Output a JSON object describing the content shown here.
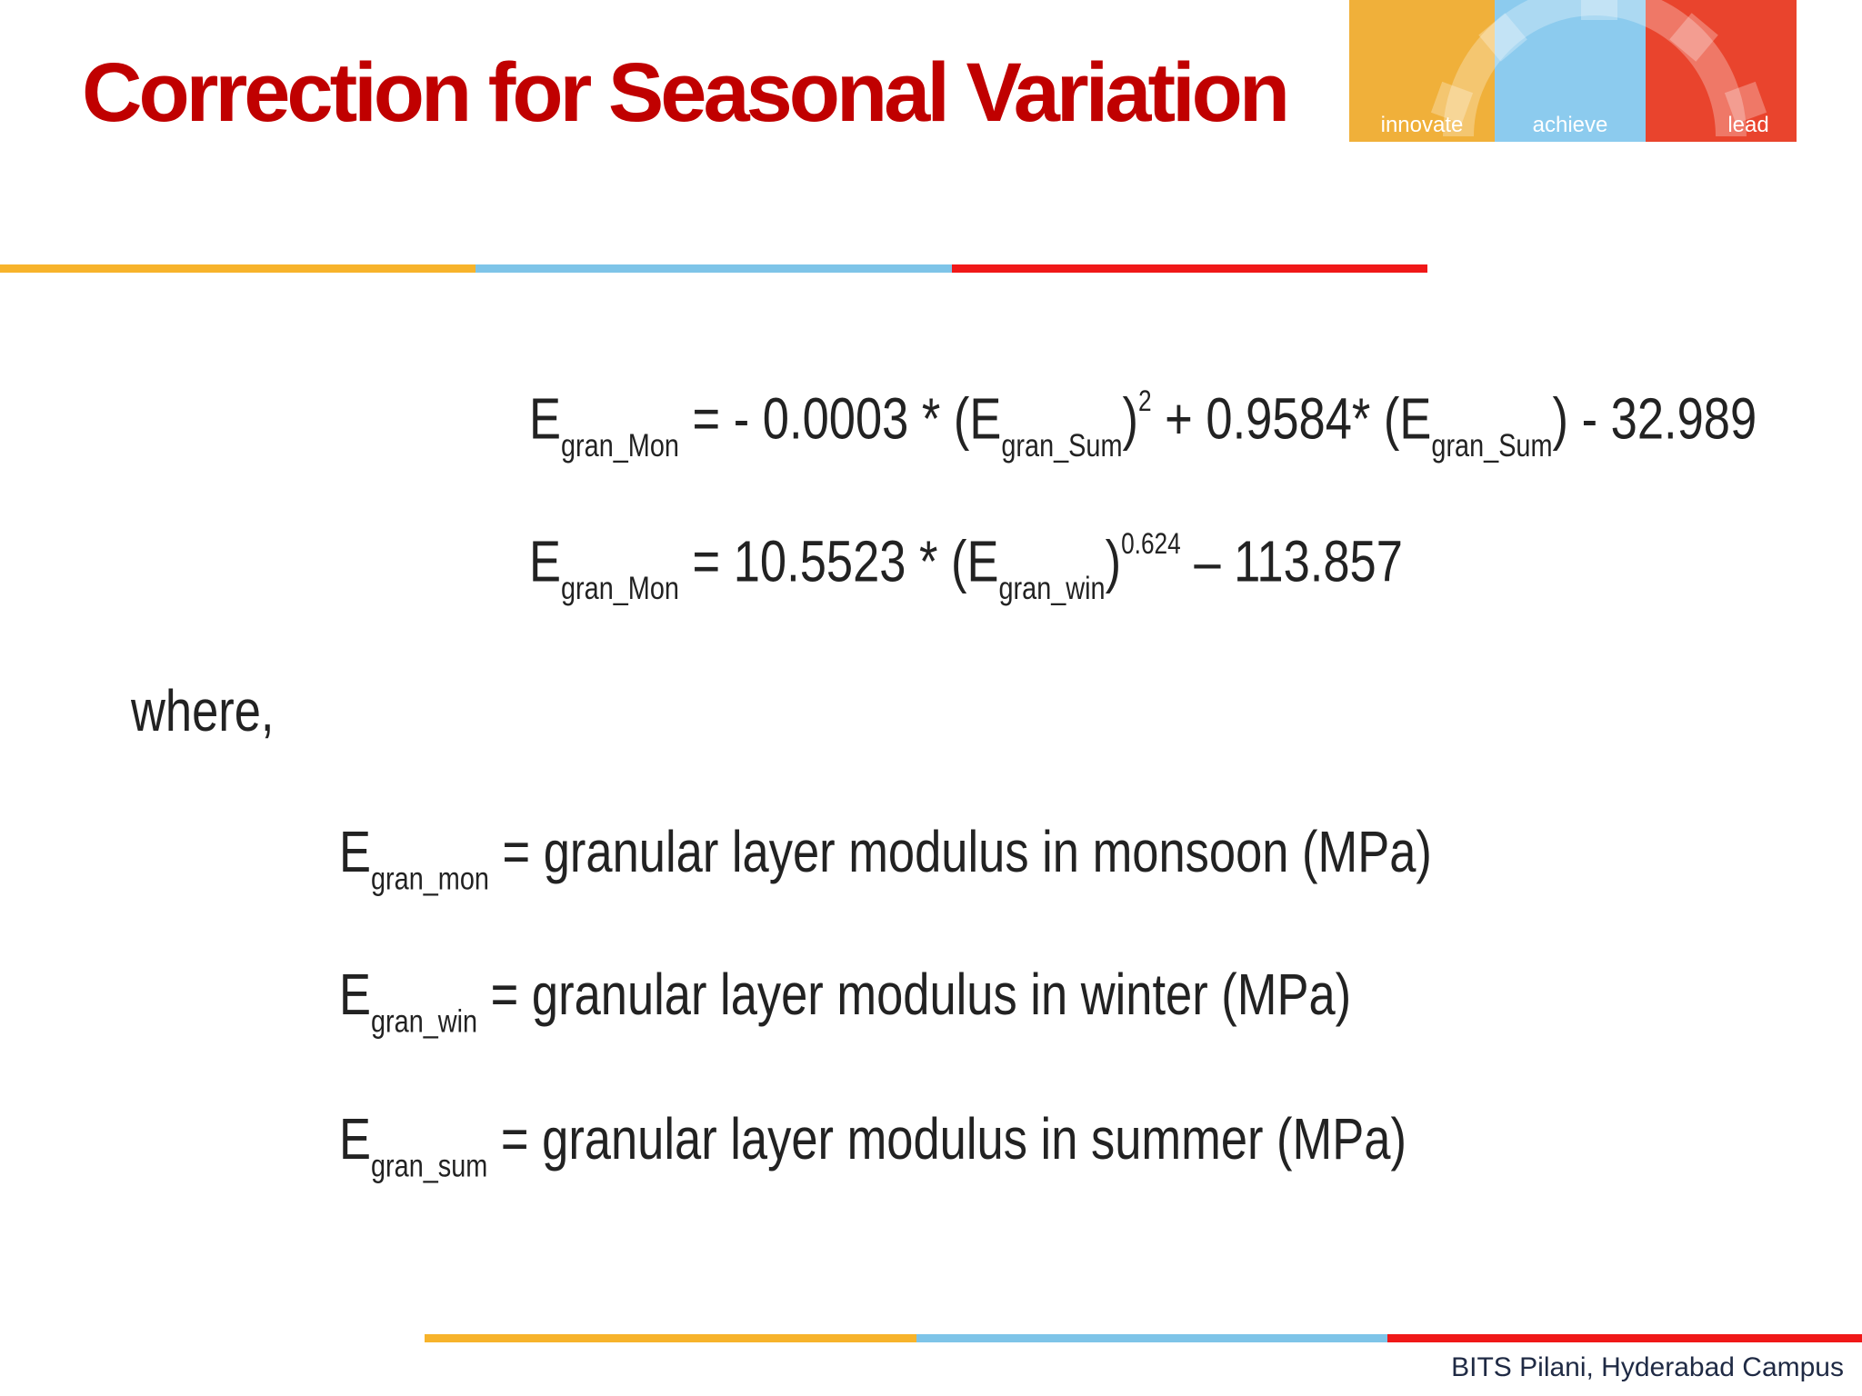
{
  "slide": {
    "title": "Correction for Seasonal Variation",
    "footer": "BITS Pilani, Hyderabad Campus"
  },
  "logo": {
    "words": [
      "innovate",
      "achieve",
      "lead"
    ],
    "colors": [
      "#f0b03a",
      "#8ccbee",
      "#e9442d"
    ]
  },
  "stripe_colors": [
    "#f7b32b",
    "#7ec4e8",
    "#f01818"
  ],
  "equations": {
    "eq1": {
      "lhs_symbol": "E",
      "lhs_sub": "gran_Mon",
      "part1": " = - 0.0003 * (E",
      "sub1": "gran_Sum",
      "part2": ")",
      "sup1": "2",
      "part3": " + 0.9584* (E",
      "sub2": "gran_Sum",
      "part4": ") - 32.989"
    },
    "eq2": {
      "lhs_symbol": "E",
      "lhs_sub": "gran_Mon",
      "part1": " = 10.5523 * (E",
      "sub1": "gran_win",
      "part2": ")",
      "sup1": "0.624",
      "part3": " – 113.857"
    }
  },
  "where_label": "where,",
  "definitions": [
    {
      "symbol": "E",
      "sub": "gran_mon",
      "text": " = granular layer modulus in monsoon (MPa)"
    },
    {
      "symbol": "E",
      "sub": "gran_win",
      "text": " = granular layer modulus in winter (MPa)"
    },
    {
      "symbol": "E",
      "sub": "gran_sum",
      "text": " = granular layer modulus in summer (MPa)"
    }
  ]
}
